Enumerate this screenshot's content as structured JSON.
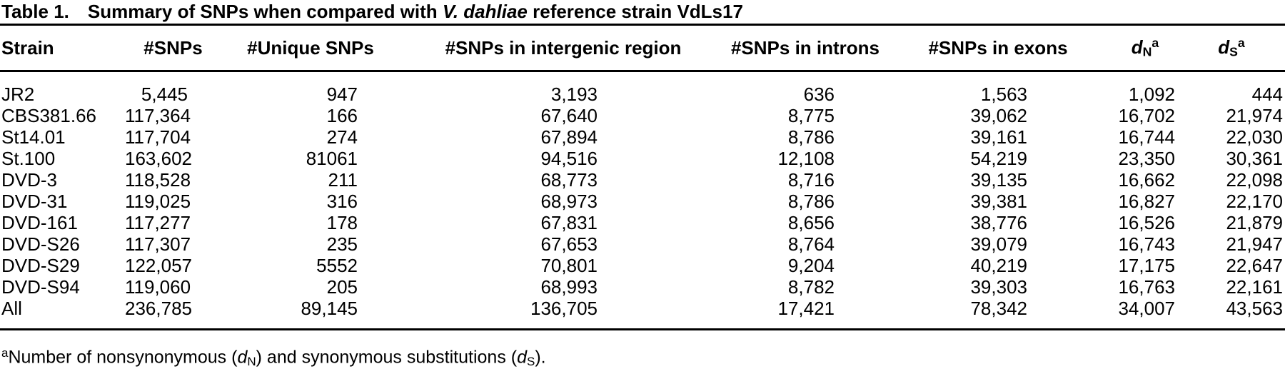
{
  "table": {
    "label": "Table 1.",
    "title_prefix": "Summary of SNPs when compared with ",
    "title_italic": "V. dahliae",
    "title_suffix": " reference strain VdLs17",
    "columns": [
      {
        "label": "Strain"
      },
      {
        "label": "#SNPs"
      },
      {
        "label": "#Unique SNPs"
      },
      {
        "label": "#SNPs in intergenic region"
      },
      {
        "label": "#SNPs in introns"
      },
      {
        "label": "#SNPs in exons"
      },
      {
        "base": "d",
        "sub": "N",
        "sup": "a"
      },
      {
        "base": "d",
        "sub": "S",
        "sup": "a"
      }
    ],
    "rows": [
      [
        "JR2",
        "5,445",
        "947",
        "3,193",
        "636",
        "1,563",
        "1,092",
        "444"
      ],
      [
        "CBS381.66",
        "117,364",
        "166",
        "67,640",
        "8,775",
        "39,062",
        "16,702",
        "21,974"
      ],
      [
        "St14.01",
        "117,704",
        "274",
        "67,894",
        "8,786",
        "39,161",
        "16,744",
        "22,030"
      ],
      [
        "St.100",
        "163,602",
        "81061",
        "94,516",
        "12,108",
        "54,219",
        "23,350",
        "30,361"
      ],
      [
        "DVD-3",
        "118,528",
        "211",
        "68,773",
        "8,716",
        "39,135",
        "16,662",
        "22,098"
      ],
      [
        "DVD-31",
        "119,025",
        "316",
        "68,973",
        "8,786",
        "39,381",
        "16,827",
        "22,170"
      ],
      [
        "DVD-161",
        "117,277",
        "178",
        "67,831",
        "8,656",
        "38,776",
        "16,526",
        "21,879"
      ],
      [
        "DVD-S26",
        "117,307",
        "235",
        "67,653",
        "8,764",
        "39,079",
        "16,743",
        "21,947"
      ],
      [
        "DVD-S29",
        "122,057",
        "5552",
        "70,801",
        "9,204",
        "40,219",
        "17,175",
        "22,647"
      ],
      [
        "DVD-S94",
        "119,060",
        "205",
        "68,993",
        "8,782",
        "39,303",
        "16,763",
        "22,161"
      ],
      [
        "All",
        "236,785",
        "89,145",
        "136,705",
        "17,421",
        "78,342",
        "34,007",
        "43,563"
      ]
    ],
    "footnote_segments": [
      {
        "t": "a",
        "style": "sup"
      },
      {
        "t": "Number of nonsynonymous ("
      },
      {
        "t": "d",
        "style": "i"
      },
      {
        "t": "N",
        "style": "sub"
      },
      {
        "t": ") and synonymous substitutions ("
      },
      {
        "t": "d",
        "style": "i"
      },
      {
        "t": "S",
        "style": "sub"
      },
      {
        "t": ")."
      }
    ]
  }
}
